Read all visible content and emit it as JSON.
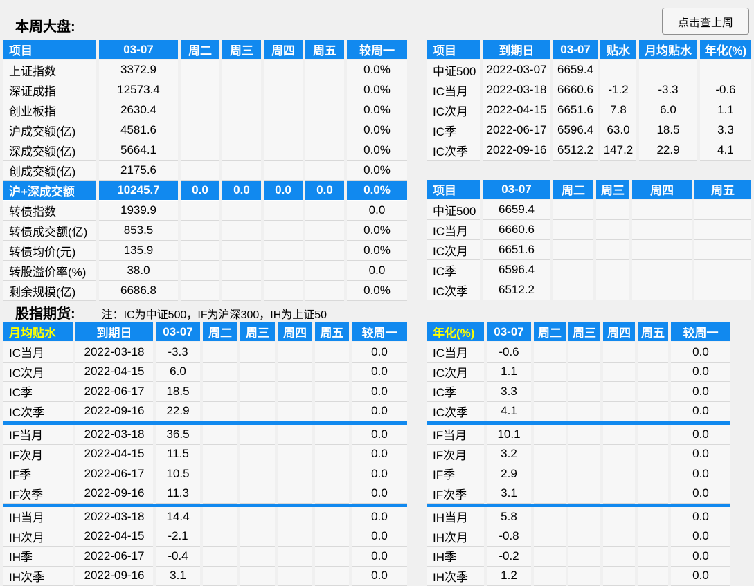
{
  "page": {
    "title_week": "本周大盘:",
    "button_last_week": "点击查上周",
    "title_futures": "股指期货:",
    "futures_note": "注：IC为中证500，IF为沪深300，IH为上证50"
  },
  "colors": {
    "header_blue": "#1189ef",
    "header_yellow": "#ffff00",
    "cell_bg": "#f7f7f7",
    "row_line": "#d9d9d9",
    "page_bg": "#f0f0f0"
  },
  "tables": {
    "market": {
      "headers": [
        "项目",
        "03-07",
        "周二",
        "周三",
        "周四",
        "周五",
        "较周一"
      ],
      "rows": [
        [
          "上证指数",
          "3372.9",
          "",
          "",
          "",
          "",
          "0.0%"
        ],
        [
          "深证成指",
          "12573.4",
          "",
          "",
          "",
          "",
          "0.0%"
        ],
        [
          "创业板指",
          "2630.4",
          "",
          "",
          "",
          "",
          "0.0%"
        ],
        [
          "沪成交额(亿)",
          "4581.6",
          "",
          "",
          "",
          "",
          "0.0%"
        ],
        [
          "深成交额(亿)",
          "5664.1",
          "",
          "",
          "",
          "",
          "0.0%"
        ],
        [
          "创成交额(亿)",
          "2175.6",
          "",
          "",
          "",
          "",
          "0.0%"
        ],
        [
          "沪+深成交额",
          "10245.7",
          "0.0",
          "0.0",
          "0.0",
          "0.0",
          "0.0%"
        ],
        [
          "转债指数",
          "1939.9",
          "",
          "",
          "",
          "",
          "0.0"
        ],
        [
          "转债成交额(亿)",
          "853.5",
          "",
          "",
          "",
          "",
          "0.0%"
        ],
        [
          "转债均价(元)",
          "135.9",
          "",
          "",
          "",
          "",
          "0.0%"
        ],
        [
          "转股溢价率(%)",
          "38.0",
          "",
          "",
          "",
          "",
          "0.0"
        ],
        [
          "剩余规模(亿)",
          "6686.8",
          "",
          "",
          "",
          "",
          "0.0%"
        ]
      ]
    },
    "futures_detail": {
      "headers": [
        "项目",
        "到期日",
        "03-07",
        "贴水",
        "月均贴水",
        "年化(%)"
      ],
      "rows": [
        [
          "中证500",
          "2022-03-07",
          "6659.4",
          "",
          "",
          ""
        ],
        [
          "IC当月",
          "2022-03-18",
          "6660.6",
          "-1.2",
          "-3.3",
          "-0.6"
        ],
        [
          "IC次月",
          "2022-04-15",
          "6651.6",
          "7.8",
          "6.0",
          "1.1"
        ],
        [
          "IC季",
          "2022-06-17",
          "6596.4",
          "63.0",
          "18.5",
          "3.3"
        ],
        [
          "IC次季",
          "2022-09-16",
          "6512.2",
          "147.2",
          "22.9",
          "4.1"
        ]
      ]
    },
    "futures_quotes": {
      "headers": [
        "项目",
        "03-07",
        "周二",
        "周三",
        "周四",
        "周五"
      ],
      "rows": [
        [
          "中证500",
          "6659.4",
          "",
          "",
          "",
          ""
        ],
        [
          "IC当月",
          "6660.6",
          "",
          "",
          "",
          ""
        ],
        [
          "IC次月",
          "6651.6",
          "",
          "",
          "",
          ""
        ],
        [
          "IC季",
          "6596.4",
          "",
          "",
          "",
          ""
        ],
        [
          "IC次季",
          "6512.2",
          "",
          "",
          "",
          ""
        ]
      ]
    },
    "monthly_basis": {
      "headers": [
        "月均贴水",
        "到期日",
        "03-07",
        "周二",
        "周三",
        "周四",
        "周五",
        "较周一"
      ],
      "rows": [
        [
          "IC当月",
          "2022-03-18",
          "-3.3",
          "",
          "",
          "",
          "",
          "0.0"
        ],
        [
          "IC次月",
          "2022-04-15",
          "6.0",
          "",
          "",
          "",
          "",
          "0.0"
        ],
        [
          "IC季",
          "2022-06-17",
          "18.5",
          "",
          "",
          "",
          "",
          "0.0"
        ],
        [
          "IC次季",
          "2022-09-16",
          "22.9",
          "",
          "",
          "",
          "",
          "0.0"
        ],
        [
          "IF当月",
          "2022-03-18",
          "36.5",
          "",
          "",
          "",
          "",
          "0.0"
        ],
        [
          "IF次月",
          "2022-04-15",
          "11.5",
          "",
          "",
          "",
          "",
          "0.0"
        ],
        [
          "IF季",
          "2022-06-17",
          "10.5",
          "",
          "",
          "",
          "",
          "0.0"
        ],
        [
          "IF次季",
          "2022-09-16",
          "11.3",
          "",
          "",
          "",
          "",
          "0.0"
        ],
        [
          "IH当月",
          "2022-03-18",
          "14.4",
          "",
          "",
          "",
          "",
          "0.0"
        ],
        [
          "IH次月",
          "2022-04-15",
          "-2.1",
          "",
          "",
          "",
          "",
          "0.0"
        ],
        [
          "IH季",
          "2022-06-17",
          "-0.4",
          "",
          "",
          "",
          "",
          "0.0"
        ],
        [
          "IH次季",
          "2022-09-16",
          "3.1",
          "",
          "",
          "",
          "",
          "0.0"
        ]
      ]
    },
    "annualized": {
      "headers": [
        "年化(%)",
        "03-07",
        "周二",
        "周三",
        "周四",
        "周五",
        "较周一"
      ],
      "rows": [
        [
          "IC当月",
          "-0.6",
          "",
          "",
          "",
          "",
          "0.0"
        ],
        [
          "IC次月",
          "1.1",
          "",
          "",
          "",
          "",
          "0.0"
        ],
        [
          "IC季",
          "3.3",
          "",
          "",
          "",
          "",
          "0.0"
        ],
        [
          "IC次季",
          "4.1",
          "",
          "",
          "",
          "",
          "0.0"
        ],
        [
          "IF当月",
          "10.1",
          "",
          "",
          "",
          "",
          "0.0"
        ],
        [
          "IF次月",
          "3.2",
          "",
          "",
          "",
          "",
          "0.0"
        ],
        [
          "IF季",
          "2.9",
          "",
          "",
          "",
          "",
          "0.0"
        ],
        [
          "IF次季",
          "3.1",
          "",
          "",
          "",
          "",
          "0.0"
        ],
        [
          "IH当月",
          "5.8",
          "",
          "",
          "",
          "",
          "0.0"
        ],
        [
          "IH次月",
          "-0.8",
          "",
          "",
          "",
          "",
          "0.0"
        ],
        [
          "IH季",
          "-0.2",
          "",
          "",
          "",
          "",
          "0.0"
        ],
        [
          "IH次季",
          "1.2",
          "",
          "",
          "",
          "",
          "0.0"
        ]
      ]
    }
  }
}
